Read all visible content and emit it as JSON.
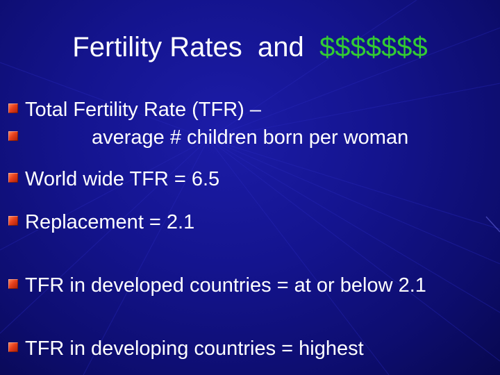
{
  "slide": {
    "title_main": "Fertility Rates  and  ",
    "title_accent": "$$$$$$$",
    "colors": {
      "background": "#14148e",
      "text": "#ffffff",
      "accent": "#33cc33",
      "bullet": "#e8401c"
    },
    "bullets": [
      {
        "text": "Total Fertility Rate (TFR) –"
      },
      {
        "text": "average # children born per woman"
      },
      {
        "text": "World wide TFR = 6.5"
      },
      {
        "text": "Replacement = 2.1"
      },
      {
        "text": "TFR in developed countries = at or below 2.1"
      },
      {
        "text": "TFR in developing countries = highest"
      }
    ]
  }
}
